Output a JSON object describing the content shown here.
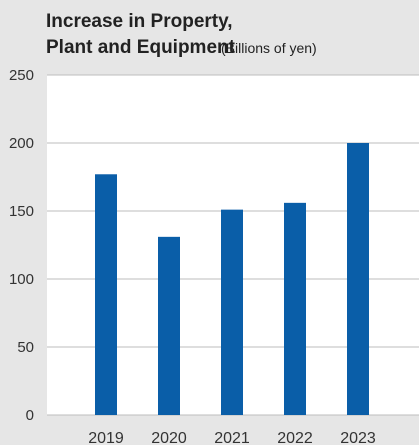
{
  "colors": {
    "background": "#e6e6e6",
    "plot_background": "#ffffff",
    "bar": "#0a5ea8",
    "grid": "#bdbdbd"
  },
  "chart_data": {
    "type": "bar",
    "title_line1": "Increase in Property,",
    "title_line2": "Plant and Equipment",
    "unit": "(Billions of yen)",
    "categories": [
      "2019",
      "2020",
      "2021",
      "2022",
      "2023"
    ],
    "values": [
      177,
      131,
      151,
      156,
      200
    ],
    "y_ticks": [
      "0",
      "50",
      "100",
      "150",
      "200",
      "250"
    ],
    "ylim": [
      0,
      250
    ],
    "grid": true,
    "legend": "none"
  }
}
